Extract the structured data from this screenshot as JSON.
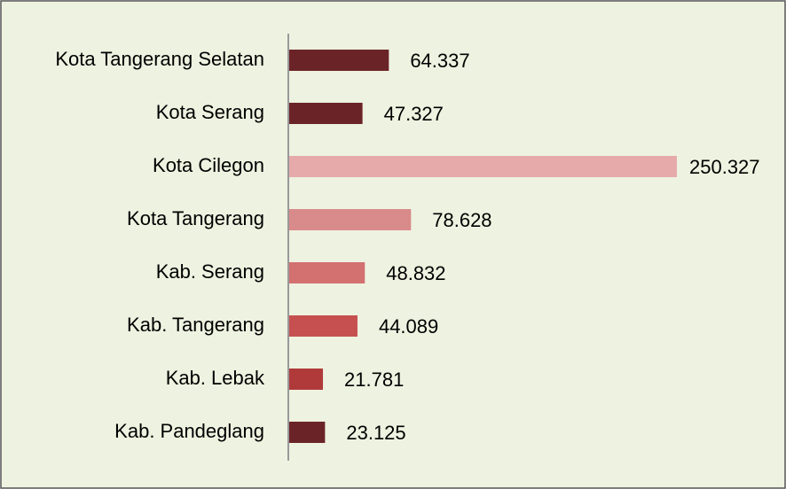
{
  "chart_data": {
    "type": "bar",
    "orientation": "horizontal",
    "categories": [
      "Kota Tangerang Selatan",
      "Kota Serang",
      "Kota Cilegon",
      "Kota Tangerang",
      "Kab. Serang",
      "Kab. Tangerang",
      "Kab. Lebak",
      "Kab. Pandeglang"
    ],
    "values": [
      64.337,
      47.327,
      250.327,
      78.628,
      48.832,
      44.089,
      21.781,
      23.125
    ],
    "colors": [
      "#6a2427",
      "#6a2427",
      "#e6aaaa",
      "#d98a8a",
      "#d37070",
      "#c65050",
      "#b03a3a",
      "#6a2427"
    ]
  }
}
